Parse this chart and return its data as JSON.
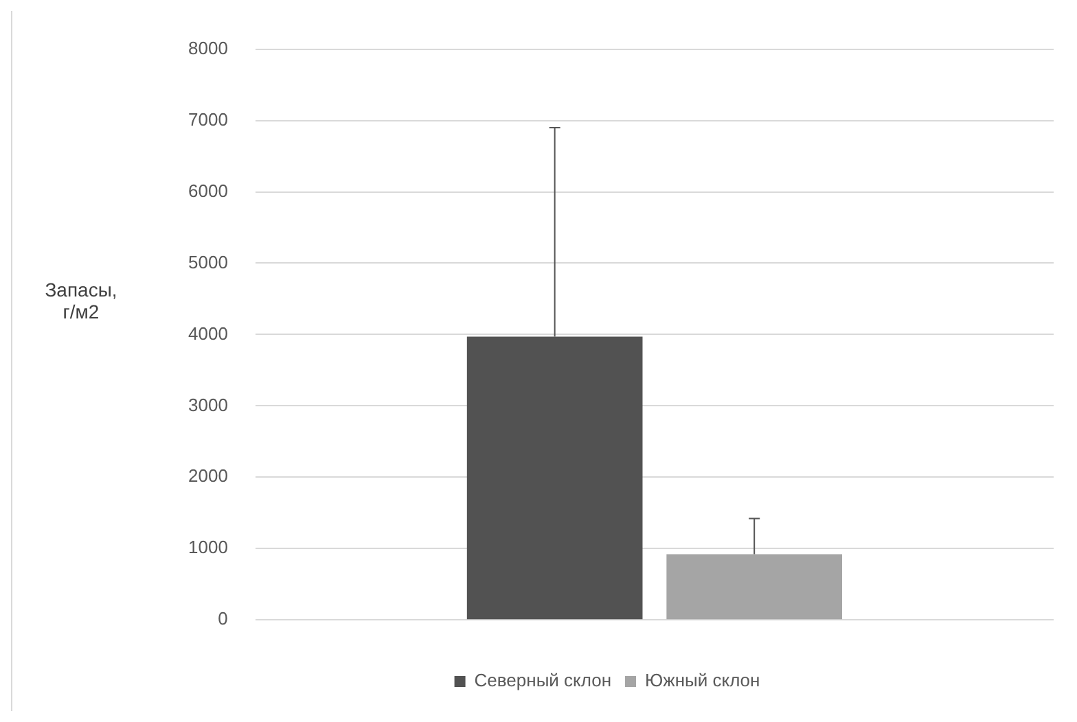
{
  "chart_data": {
    "type": "bar",
    "ylabel": "Запасы, г/м2",
    "categories": [
      null
    ],
    "series": [
      {
        "name": "Северный склон",
        "color": "#525252",
        "values": [
          3970
        ],
        "errors": [
          [
            3970,
            6900
          ]
        ]
      },
      {
        "name": "Южный склон",
        "color": "#a5a5a5",
        "values": [
          920
        ],
        "errors": [
          [
            920,
            1420
          ]
        ]
      }
    ],
    "ylim": [
      0,
      8000
    ],
    "yticks": [
      0,
      1000,
      2000,
      3000,
      4000,
      5000,
      6000,
      7000,
      8000
    ],
    "grid": "y",
    "legend": "bottom"
  }
}
